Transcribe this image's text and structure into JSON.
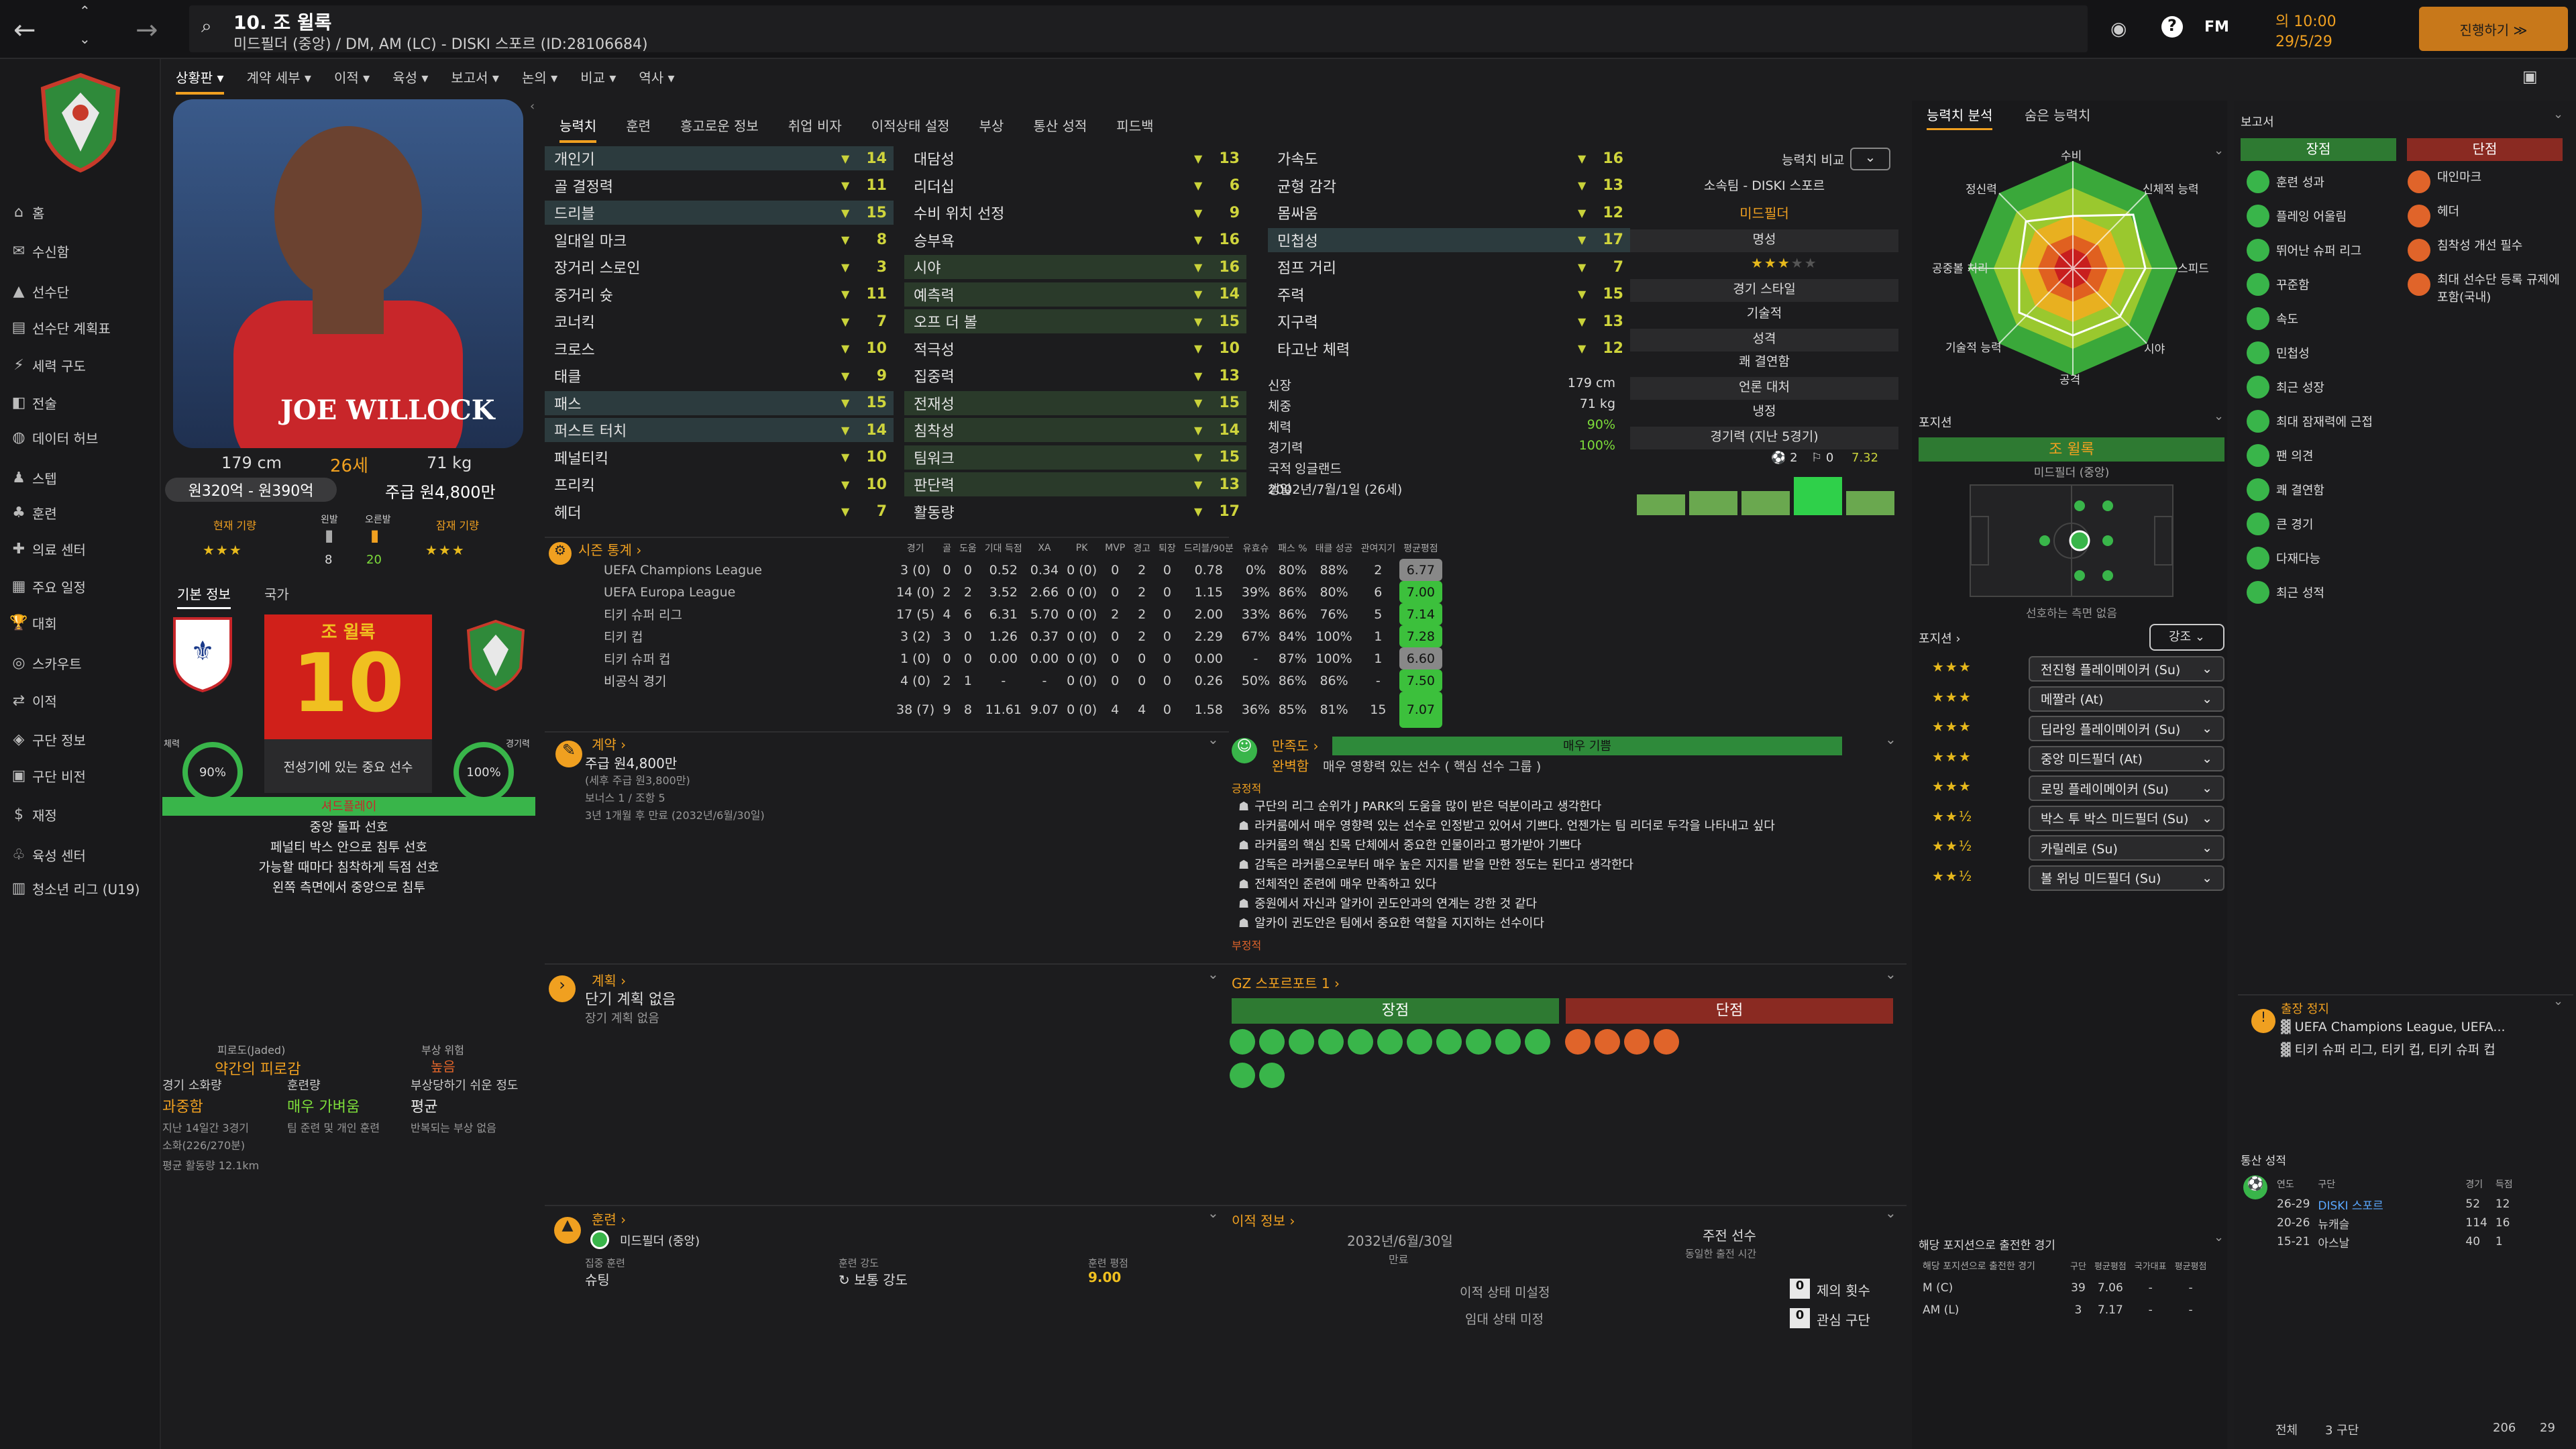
{
  "header": {
    "title": "10. 조 윌록",
    "subtitle": "미드필더 (중앙) / DM, AM (LC) - DISKI 스포르 (ID:28106684)",
    "fm_label": "FM",
    "time": "의 10:00",
    "date": "29/5/29",
    "continue_label": "진행하기 ≫"
  },
  "sidebar": {
    "items": [
      {
        "label": "홈",
        "icon": "home-icon"
      },
      {
        "label": "수신함",
        "icon": "inbox-icon"
      },
      {
        "label": "선수단",
        "icon": "shirt-icon"
      },
      {
        "label": "선수단 계획표",
        "icon": "planner-icon"
      },
      {
        "label": "세력 구도",
        "icon": "dynamics-icon"
      },
      {
        "label": "전술",
        "icon": "tactics-icon"
      },
      {
        "label": "데이터 허브",
        "icon": "data-icon"
      },
      {
        "label": "스텝",
        "icon": "staff-icon"
      },
      {
        "label": "훈련",
        "icon": "training-icon"
      },
      {
        "label": "의료 센터",
        "icon": "medical-icon"
      },
      {
        "label": "주요 일정",
        "icon": "calendar-icon"
      },
      {
        "label": "대회",
        "icon": "trophy-icon"
      },
      {
        "label": "스카우트",
        "icon": "scout-icon"
      },
      {
        "label": "이적",
        "icon": "transfer-icon"
      },
      {
        "label": "구단 정보",
        "icon": "club-icon"
      },
      {
        "label": "구단 비전",
        "icon": "vision-icon"
      },
      {
        "label": "재정",
        "icon": "finance-icon"
      },
      {
        "label": "육성 센터",
        "icon": "youth-icon"
      },
      {
        "label": "청소년 리그 (U19)",
        "icon": "u19-icon"
      }
    ]
  },
  "subnav": [
    "상황판 ▾",
    "계약 세부 ▾",
    "이적 ▾",
    "육성 ▾",
    "보고서 ▾",
    "논의 ▾",
    "비교 ▾",
    "역사 ▾"
  ],
  "profile": {
    "height": "179 cm",
    "age": "26세",
    "weight": "71 kg",
    "value": "원320억 - 원390억",
    "wage": "주급 원4,800만",
    "current_label": "현재 기량",
    "potential_label": "잠재 기량",
    "left_label": "왼발",
    "right_label": "오른발",
    "left_val": "8",
    "right_val": "20",
    "card_name": "조 윌록",
    "card_number": "10",
    "card_desc": "전성기에 있는 중요 선수",
    "fitness_label": "체력",
    "fitness_val": "90%",
    "match_label": "경기력",
    "match_val": "100%",
    "role_label": "셔드플레이",
    "prefs": [
      "중앙 돌파 선호",
      "페널티 박스 안으로 침투 선호",
      "가능할 때마다 침착하게 득점 선호",
      "왼쪽 측면에서 중앙으로 침투"
    ],
    "info_tab": "기본 정보",
    "nation_tab": "국가",
    "shirt_name": "JOE WILLOCK"
  },
  "condition": {
    "fatigue_label": "피로도(Jaded)",
    "fatigue_val": "약간의 피로감",
    "injury_label": "부상 위험",
    "injury_val": "높음",
    "load_label": "경기 소화량",
    "load_val": "과중함",
    "train_label": "훈련량",
    "train_val": "매우 가벼움",
    "prone_label": "부상당하기 쉬운 정도",
    "prone_val": "평균",
    "l1": "지난 14일간 3경기",
    "l2": "소화(226/270분)",
    "l3": "팀 준련 및 개인 훈련",
    "l4": "반복되는 부상 없음",
    "l5": "평균 활동량 12.1km"
  },
  "attr_tabs": [
    "능력치",
    "훈련",
    "흥고로운 정보",
    "취업 비자",
    "이적상태 설정",
    "부상",
    "통산 성적",
    "피드백"
  ],
  "tech": [
    [
      "개인기",
      "14"
    ],
    [
      "골 결정력",
      "11"
    ],
    [
      "드리블",
      "15"
    ],
    [
      "일대일 마크",
      "8"
    ],
    [
      "장거리 스로인",
      "3"
    ],
    [
      "중거리 슛",
      "11"
    ],
    [
      "코너킥",
      "7"
    ],
    [
      "크로스",
      "10"
    ],
    [
      "태클",
      "9"
    ],
    [
      "패스",
      "15"
    ],
    [
      "퍼스트 터치",
      "14"
    ],
    [
      "페널티킥",
      "10"
    ],
    [
      "프리킥",
      "10"
    ],
    [
      "헤더",
      "7"
    ]
  ],
  "mental": [
    [
      "대담성",
      "13"
    ],
    [
      "리더십",
      "6"
    ],
    [
      "수비 위치 선정",
      "9"
    ],
    [
      "승부욕",
      "16"
    ],
    [
      "시야",
      "16"
    ],
    [
      "예측력",
      "14"
    ],
    [
      "오프 더 볼",
      "15"
    ],
    [
      "적극성",
      "10"
    ],
    [
      "집중력",
      "13"
    ],
    [
      "전재성",
      "15"
    ],
    [
      "침착성",
      "14"
    ],
    [
      "팀워크",
      "15"
    ],
    [
      "판단력",
      "13"
    ],
    [
      "활동량",
      "17"
    ]
  ],
  "physical": [
    [
      "가속도",
      "16"
    ],
    [
      "균형 감각",
      "13"
    ],
    [
      "몸싸움",
      "12"
    ],
    [
      "민첩성",
      "17"
    ],
    [
      "점프 거리",
      "7"
    ],
    [
      "주력",
      "15"
    ],
    [
      "지구력",
      "13"
    ],
    [
      "타고난 체력",
      "12"
    ]
  ],
  "bio": [
    [
      "신장",
      "179 cm"
    ],
    [
      "체중",
      "71 kg"
    ],
    [
      "체력",
      "90%"
    ],
    [
      "경기력",
      "100%"
    ],
    [
      "국적",
      "잉글랜드"
    ],
    [
      "생일",
      "2002년/7월/1일 (26세)"
    ]
  ],
  "compare": {
    "label": "능력치 비교",
    "club": "소속팀 - DISKI 스포르",
    "pos": "미드필더",
    "rep": "명성",
    "style": "경기 스타일",
    "style_val": "기술적",
    "pers": "성격",
    "pers_val": "쾌 결연함",
    "media": "언론 대처",
    "media_val": "냉정",
    "form": "경기력 (지난 5경기)",
    "form_a": "2",
    "form_b": "0",
    "form_c": "7.32"
  },
  "season": {
    "title": "시즌 통계 ›",
    "cols": [
      "경기",
      "골",
      "도움",
      "기대 득점",
      "XA",
      "PK",
      "MVP",
      "경고",
      "퇴장",
      "드리블/90분",
      "유효슈",
      "패스 %",
      "태클 성공",
      "관여지기",
      "평균평점"
    ],
    "rows": [
      [
        "UEFA Champions League",
        "3 (0)",
        "0",
        "0",
        "0.52",
        "0.34",
        "0 (0)",
        "0",
        "2",
        "0",
        "0.78",
        "0%",
        "80%",
        "88%",
        "2",
        "6.77"
      ],
      [
        "UEFA Europa League",
        "14 (0)",
        "2",
        "2",
        "3.52",
        "2.66",
        "0 (0)",
        "0",
        "2",
        "0",
        "1.15",
        "39%",
        "86%",
        "80%",
        "6",
        "7.00"
      ],
      [
        "티키 슈퍼 리그",
        "17 (5)",
        "4",
        "6",
        "6.31",
        "5.70",
        "0 (0)",
        "2",
        "2",
        "0",
        "2.00",
        "33%",
        "86%",
        "76%",
        "5",
        "7.14"
      ],
      [
        "티키 컵",
        "3 (2)",
        "3",
        "0",
        "1.26",
        "0.37",
        "0 (0)",
        "0",
        "2",
        "0",
        "2.29",
        "67%",
        "84%",
        "100%",
        "1",
        "7.28"
      ],
      [
        "티키 슈퍼 컵",
        "1 (0)",
        "0",
        "0",
        "0.00",
        "0.00",
        "0 (0)",
        "0",
        "0",
        "0",
        "0.00",
        "-",
        "87%",
        "100%",
        "1",
        "6.60"
      ],
      [
        "비공식 경기",
        "4 (0)",
        "2",
        "1",
        "-",
        "-",
        "0 (0)",
        "0",
        "0",
        "0",
        "0.26",
        "50%",
        "86%",
        "86%",
        "-",
        "7.50"
      ]
    ],
    "total": [
      "38 (7)",
      "9",
      "8",
      "11.61",
      "9.07",
      "0 (0)",
      "4",
      "4",
      "0",
      "1.58",
      "36%",
      "85%",
      "81%",
      "15",
      "7.07"
    ]
  },
  "contract": {
    "title": "계약 ›",
    "wage": "주급 원4,800만",
    "wage2": "(세후 주급 원3,800만)",
    "bonus": "보너스 1 / 조항 5",
    "expiry": "3년 1개월 후 만료 (2032년/6월/30일)"
  },
  "satisfaction": {
    "title": "만족도 ›",
    "level": "매우 기쁨",
    "status": "완벽함",
    "status2": "매우 영향력 있는 선수 ( 핵심 선수 그룹 )",
    "pos_label": "긍정적",
    "items": [
      "구단의 리그 순위가 J PARK의 도움을 많이 받은 덕분이라고 생각한다",
      "라커룸에서 매우 영향력 있는 선수로 인정받고 있어서 기쁘다. 언젠가는 팀 리더로 두각을 나타내고 싶다",
      "라커룸의 핵심 친목 단체에서 중요한 인물이라고 평가받아 기쁘다",
      "감독은 라커룸으로부터 매우 높은 지지를 받을 만한 정도는 된다고 생각한다",
      "전체적인 준련에 매우 만족하고 있다",
      "중원에서 자신과 알카이 귄도안과의 연계는 강한 것 같다",
      "알카이 귄도안은 팀에서 중요한 역할을 지지하는 선수이다"
    ],
    "neg_label": "부정적"
  },
  "plan": {
    "title": "계획 ›",
    "l1": "단기 계획 없음",
    "l2": "장기 계획 없음"
  },
  "scout": {
    "title": "GZ 스포르포트 1 ›",
    "pros": "장점",
    "cons": "단점"
  },
  "training": {
    "title": "훈련 ›",
    "role": "미드필더 (중앙)",
    "focus_label": "집중 훈련",
    "focus": "슈팅",
    "intensity_label": "훈련 강도",
    "intensity": "보통 강도",
    "rating_label": "훈련 평점",
    "rating": "9.00"
  },
  "transfer": {
    "title": "이적 정보 ›",
    "date": "2032년/6월/30일",
    "expire_label": "만료",
    "rec": "주전 선수",
    "rec2": "동일한 출전 시간",
    "status1": "이적 상태 미설정",
    "status2": "임대 상태 미정",
    "offers": "제의 횟수",
    "offers_n": "0",
    "interest": "관심 구단",
    "interest_n": "0"
  },
  "right_tabs": [
    "능력치 분석",
    "숨은 능력치"
  ],
  "radar": {
    "labels": [
      "수비",
      "신체적 능력",
      "스피드",
      "시야",
      "공격",
      "기술적 능력",
      "공중볼 처리",
      "정신력"
    ]
  },
  "position": {
    "title": "포지션",
    "name": "조 윌록",
    "pos": "미드필더 (중앙)",
    "note": "선호하는 측면 없음"
  },
  "roles": {
    "title": "포지션 ›",
    "strength_label": "강조",
    "list": [
      {
        "name": "전진형 플레이메이커 (Su)",
        "stars": "★★★"
      },
      {
        "name": "메짤라 (At)",
        "stars": "★★★"
      },
      {
        "name": "딥라잉 플레이메이커 (Su)",
        "stars": "★★★"
      },
      {
        "name": "중앙 미드필더 (At)",
        "stars": "★★★"
      },
      {
        "name": "로밍 플레이메이커 (Su)",
        "stars": "★★★"
      },
      {
        "name": "박스 투 박스 미드필더 (Su)",
        "stars": "★★½"
      },
      {
        "name": "카릴레로 (Su)",
        "stars": "★★½"
      },
      {
        "name": "볼 위닝 미드필더 (Su)",
        "stars": "★★½"
      }
    ]
  },
  "games_pos": {
    "title": "해당 포지션으로 출전한 경기",
    "sub": "해당 포지션으로 출전한 경기",
    "cols": [
      "구단",
      "평균평점",
      "국가대표",
      "평균평점"
    ],
    "rows": [
      [
        "M (C)",
        "39",
        "7.06",
        "-",
        "-"
      ],
      [
        "AM (L)",
        "3",
        "7.17",
        "-",
        "-"
      ]
    ]
  },
  "report": {
    "title": "보고서",
    "pros": "장점",
    "cons": "단점",
    "pros_list": [
      "훈련 성과",
      "플레잉 어울림",
      "뛰어난 슈퍼 리그",
      "꾸준함",
      "속도",
      "민첩성",
      "최근 성장",
      "최대 잠재력에 근접",
      "팬 의견",
      "쾌 결연함",
      "큰 경기",
      "다재다능",
      "최근 성적"
    ],
    "cons_list": [
      "대인마크",
      "헤더",
      "침착성 개선 필수",
      "최대 선수단 등록 규제에 포함(국내)"
    ]
  },
  "suspension": {
    "title": "출장 정지",
    "l1": "UEFA Champions League, UEFA...",
    "l2": "티키 슈퍼 리그, 티키 컵, 티키 슈퍼 컵"
  },
  "career": {
    "title": "통산 성적",
    "cols": [
      "연도",
      "구단",
      "경기",
      "득점"
    ],
    "rows": [
      [
        "26-29",
        "DISKI 스포르",
        "52",
        "12"
      ],
      [
        "20-26",
        "뉴캐슬",
        "114",
        "16"
      ],
      [
        "15-21",
        "아스날",
        "40",
        "1"
      ]
    ],
    "total_label": "전체",
    "total_clubs": "3 구단",
    "total_apps": "206",
    "total_goals": "29"
  },
  "colors": {
    "accent": "#f0a020",
    "green": "#39b54a",
    "red": "#c83a2a"
  }
}
